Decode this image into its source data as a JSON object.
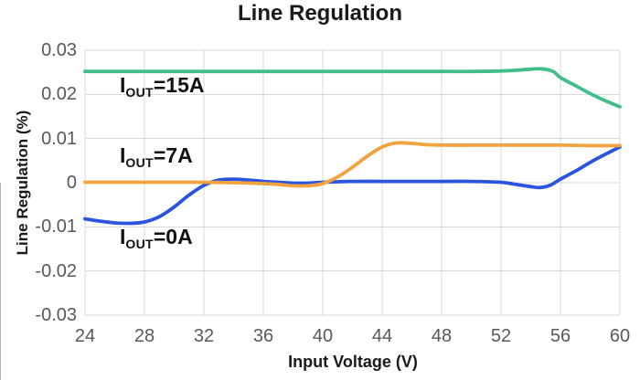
{
  "chart_data": {
    "type": "line",
    "title": "Line Regulation",
    "xlabel": "Input Voltage (V)",
    "ylabel": "Line Regulation (%)",
    "xlim": [
      24,
      60
    ],
    "ylim": [
      -0.03,
      0.03
    ],
    "x_ticks": [
      24,
      28,
      32,
      36,
      40,
      44,
      48,
      52,
      56,
      60
    ],
    "y_ticks": [
      -0.03,
      -0.02,
      -0.01,
      0,
      0.01,
      0.02,
      0.03
    ],
    "grid": true,
    "legend_position": "none (inline curve labels)",
    "colors": {
      "grid": "#d9d9d9",
      "tick_label": "#595959",
      "text": "#1a1a1a"
    },
    "series": [
      {
        "id": "iout-15a",
        "name": "IOUT=15A",
        "color": "#3fbe8a",
        "x": [
          24,
          28,
          32,
          36,
          40,
          44,
          48,
          50,
          52,
          53.5,
          54.7,
          55.5,
          56,
          57,
          58,
          59,
          60
        ],
        "y": [
          0.0252,
          0.0252,
          0.0252,
          0.0252,
          0.0252,
          0.0252,
          0.0252,
          0.0252,
          0.0253,
          0.0256,
          0.0258,
          0.0252,
          0.0238,
          0.022,
          0.0202,
          0.0186,
          0.0172
        ]
      },
      {
        "id": "iout-0a",
        "name": "IOUT=0A",
        "color": "#2a54e0",
        "x": [
          24,
          25,
          26,
          27,
          28,
          29,
          30,
          31,
          32,
          33,
          34,
          35,
          36,
          37,
          38,
          39,
          40,
          41,
          42,
          44,
          46,
          48,
          50,
          52,
          53,
          54,
          54.6,
          55.3,
          56,
          57,
          58,
          59,
          60
        ],
        "y": [
          -0.0082,
          -0.0087,
          -0.0091,
          -0.0092,
          -0.0089,
          -0.0077,
          -0.0055,
          -0.0028,
          -0.0006,
          0.0006,
          0.0008,
          0.0006,
          0.0003,
          0.0001,
          -0.0001,
          -0.0001,
          0.0001,
          0.0002,
          0.0003,
          0.0003,
          0.0003,
          0.0003,
          0.0003,
          0.0001,
          -0.0004,
          -0.0009,
          -0.0011,
          -0.0006,
          0.0008,
          0.0026,
          0.0046,
          0.0064,
          0.0081
        ]
      },
      {
        "id": "iout-7a",
        "name": "IOUT=7A",
        "color": "#f0a33f",
        "x": [
          24,
          26,
          28,
          30,
          32,
          34,
          36,
          37,
          38,
          39,
          40,
          41,
          42,
          43,
          44,
          45,
          46,
          47,
          48,
          50,
          52,
          54,
          56,
          58,
          60
        ],
        "y": [
          0.0001,
          0.0001,
          0.0001,
          0.0001,
          0.0001,
          0,
          -0.0002,
          -0.0004,
          -0.0007,
          -0.0007,
          -0.0002,
          0.0013,
          0.0035,
          0.006,
          0.0081,
          0.009,
          0.0089,
          0.0086,
          0.0085,
          0.0085,
          0.0085,
          0.0085,
          0.0085,
          0.0084,
          0.0084
        ]
      }
    ],
    "annotations": [
      {
        "pre": "I",
        "sub": "OUT",
        "post": "=15A"
      },
      {
        "pre": "I",
        "sub": "OUT",
        "post": "=7A"
      },
      {
        "pre": "I",
        "sub": "OUT",
        "post": "=0A"
      }
    ]
  }
}
